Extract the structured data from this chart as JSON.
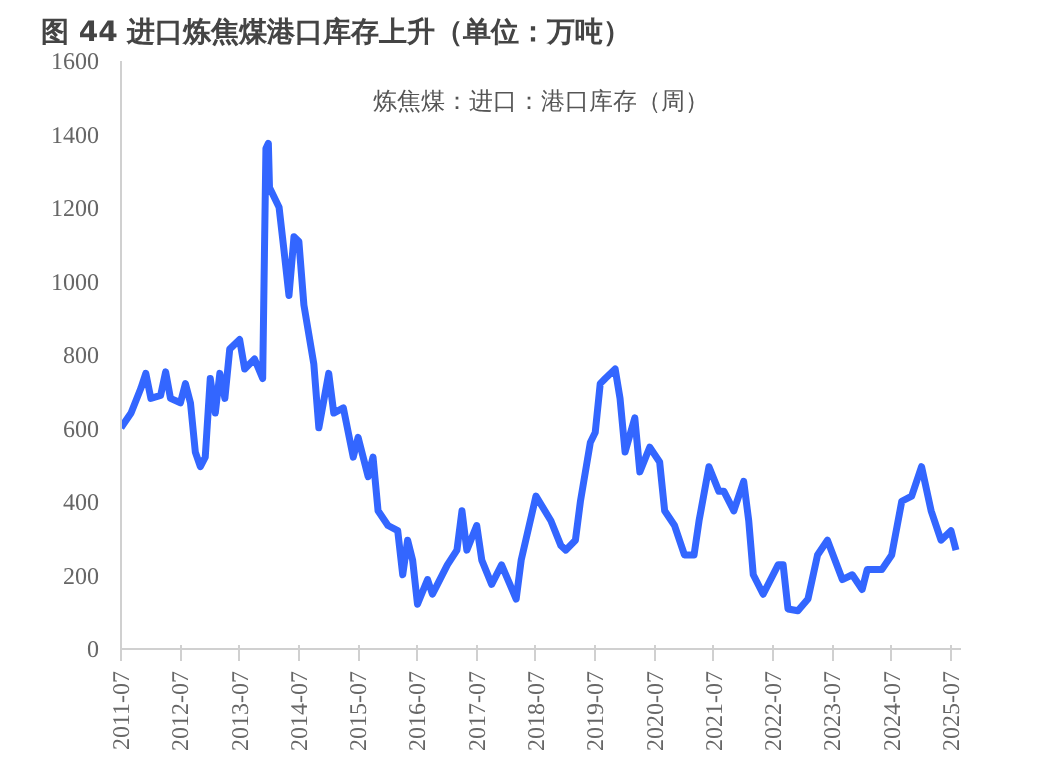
{
  "chart_data": {
    "type": "line",
    "title": "图 44  进口炼焦煤港口库存上升（单位：万吨）",
    "subtitle": "炼焦煤：进口：港口库存（周）",
    "x": [
      "2011-07",
      "2011-09",
      "2011-11",
      "2011-12",
      "2012-01",
      "2012-03",
      "2012-04",
      "2012-05",
      "2012-07",
      "2012-08",
      "2012-09",
      "2012-10",
      "2012-11",
      "2012-12",
      "2013-01",
      "2013-02",
      "2013-03",
      "2013-04",
      "2013-05",
      "2013-07",
      "2013-08",
      "2013-10",
      "2013-11-20",
      "2013-12-10",
      "2013-12-25",
      "2014-01",
      "2014-03",
      "2014-04",
      "2014-05",
      "2014-06",
      "2014-07",
      "2014-08",
      "2014-10",
      "2014-11",
      "2015-01",
      "2015-02",
      "2015-04",
      "2015-06",
      "2015-07",
      "2015-09",
      "2015-10",
      "2015-11",
      "2016-01",
      "2016-03",
      "2016-04",
      "2016-05",
      "2016-06",
      "2016-07",
      "2016-09",
      "2016-10",
      "2016-11",
      "2017-01",
      "2017-03",
      "2017-04",
      "2017-05",
      "2017-07",
      "2017-08",
      "2017-10",
      "2017-12",
      "2018-03",
      "2018-04",
      "2018-07",
      "2018-10",
      "2018-12",
      "2019-01",
      "2019-03",
      "2019-04",
      "2019-06",
      "2019-07",
      "2019-08",
      "2019-09",
      "2019-11",
      "2019-12",
      "2020-01",
      "2020-03",
      "2020-04",
      "2020-06",
      "2020-08",
      "2020-09",
      "2020-11",
      "2021-01",
      "2021-03",
      "2021-04",
      "2021-06",
      "2021-08",
      "2021-09",
      "2021-11",
      "2022-01",
      "2022-02",
      "2022-03",
      "2022-05",
      "2022-08",
      "2022-09",
      "2022-10",
      "2022-12",
      "2023-02",
      "2023-04",
      "2023-06",
      "2023-09",
      "2023-11",
      "2024-01",
      "2024-02",
      "2024-05",
      "2024-07",
      "2024-09",
      "2024-11",
      "2025-01",
      "2025-03",
      "2025-05",
      "2025-07",
      "2025-08"
    ],
    "series": [
      {
        "name": null,
        "color": "#3366ff",
        "values": [
          602,
          642,
          710,
          750,
          682,
          690,
          754,
          682,
          670,
          722,
          670,
          536,
          496,
          522,
          736,
          642,
          750,
          682,
          816,
          842,
          762,
          789,
          736,
          1362,
          1376,
          1256,
          1202,
          1082,
          962,
          1122,
          1109,
          936,
          776,
          602,
          750,
          642,
          656,
          522,
          576,
          469,
          522,
          376,
          336,
          322,
          202,
          296,
          242,
          122,
          189,
          149,
          176,
          229,
          269,
          376,
          269,
          336,
          242,
          176,
          229,
          136,
          242,
          416,
          349,
          282,
          269,
          296,
          402,
          562,
          589,
          722,
          736,
          762,
          682,
          536,
          629,
          482,
          549,
          509,
          376,
          336,
          256,
          256,
          349,
          496,
          429,
          429,
          376,
          456,
          349,
          202,
          149,
          229,
          229,
          109,
          104,
          136,
          256,
          296,
          189,
          202,
          162,
          216,
          216,
          256,
          402,
          416,
          496,
          376,
          296,
          322,
          269
        ]
      }
    ],
    "xlim": [
      "2011-07",
      "2025-09"
    ],
    "xticks": [
      "2011-07",
      "2012-07",
      "2013-07",
      "2014-07",
      "2015-07",
      "2016-07",
      "2017-07",
      "2018-07",
      "2019-07",
      "2020-07",
      "2021-07",
      "2022-07",
      "2023-07",
      "2024-07",
      "2025-07"
    ],
    "ylim": [
      0,
      1600
    ],
    "yticks": [
      0,
      200,
      400,
      600,
      800,
      1000,
      1200,
      1400,
      1600
    ],
    "grid": false
  }
}
